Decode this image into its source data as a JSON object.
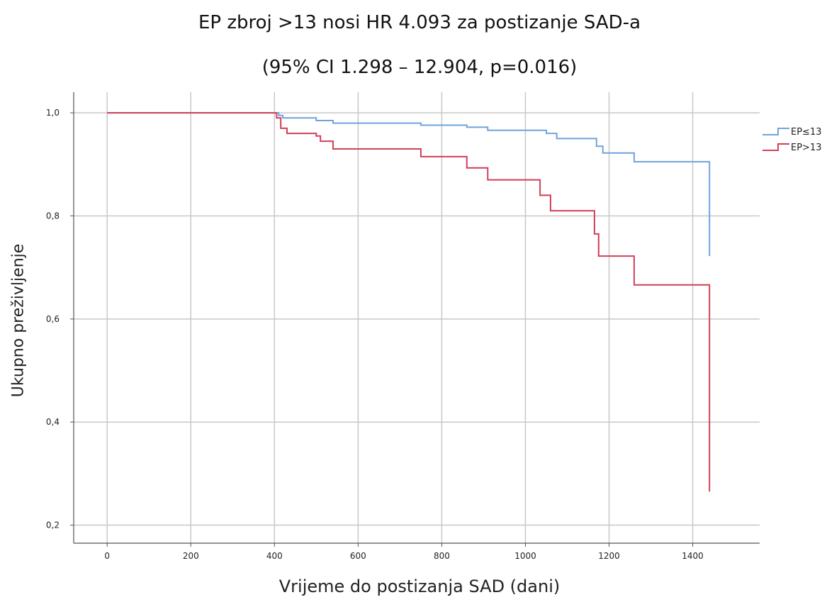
{
  "chart_data": {
    "type": "line",
    "title_line1": "EP zbroj >13 nosi HR 4.093 za postizanje SAD-a",
    "title_line2": "(95% CI 1.298 – 12.904, p=0.016)",
    "xlabel": "Vrijeme do postizanja SAD (dani)",
    "ylabel": "Ukupno preživljenje",
    "xlim": [
      -80,
      1560
    ],
    "ylim": [
      0.165,
      1.04
    ],
    "xticks": [
      0,
      200,
      400,
      600,
      800,
      1000,
      1200,
      1400
    ],
    "xtick_labels": [
      "0",
      "200",
      "400",
      "600",
      "800",
      "1000",
      "1200",
      "1400"
    ],
    "yticks": [
      0.2,
      0.4,
      0.6,
      0.8,
      1.0
    ],
    "ytick_labels": [
      "0,2",
      "0,4",
      "0,6",
      "0,8",
      "1,0"
    ],
    "grid": true,
    "legend_position": "right",
    "step": true,
    "series": [
      {
        "name": "EP≤13",
        "color": "#6fa3dc",
        "points": [
          [
            0,
            1.0
          ],
          [
            405,
            1.0
          ],
          [
            410,
            0.995
          ],
          [
            420,
            0.99
          ],
          [
            500,
            0.985
          ],
          [
            540,
            0.98
          ],
          [
            750,
            0.976
          ],
          [
            860,
            0.972
          ],
          [
            910,
            0.966
          ],
          [
            1050,
            0.96
          ],
          [
            1075,
            0.95
          ],
          [
            1170,
            0.935
          ],
          [
            1185,
            0.922
          ],
          [
            1260,
            0.905
          ],
          [
            1440,
            0.905
          ],
          [
            1440,
            0.722
          ]
        ]
      },
      {
        "name": "EP>13",
        "color": "#d23f57",
        "points": [
          [
            0,
            1.0
          ],
          [
            400,
            1.0
          ],
          [
            405,
            0.99
          ],
          [
            415,
            0.97
          ],
          [
            430,
            0.96
          ],
          [
            500,
            0.955
          ],
          [
            510,
            0.945
          ],
          [
            540,
            0.93
          ],
          [
            750,
            0.915
          ],
          [
            860,
            0.893
          ],
          [
            910,
            0.87
          ],
          [
            1035,
            0.84
          ],
          [
            1060,
            0.81
          ],
          [
            1165,
            0.765
          ],
          [
            1175,
            0.722
          ],
          [
            1260,
            0.666
          ],
          [
            1440,
            0.666
          ],
          [
            1440,
            0.265
          ]
        ]
      }
    ]
  }
}
